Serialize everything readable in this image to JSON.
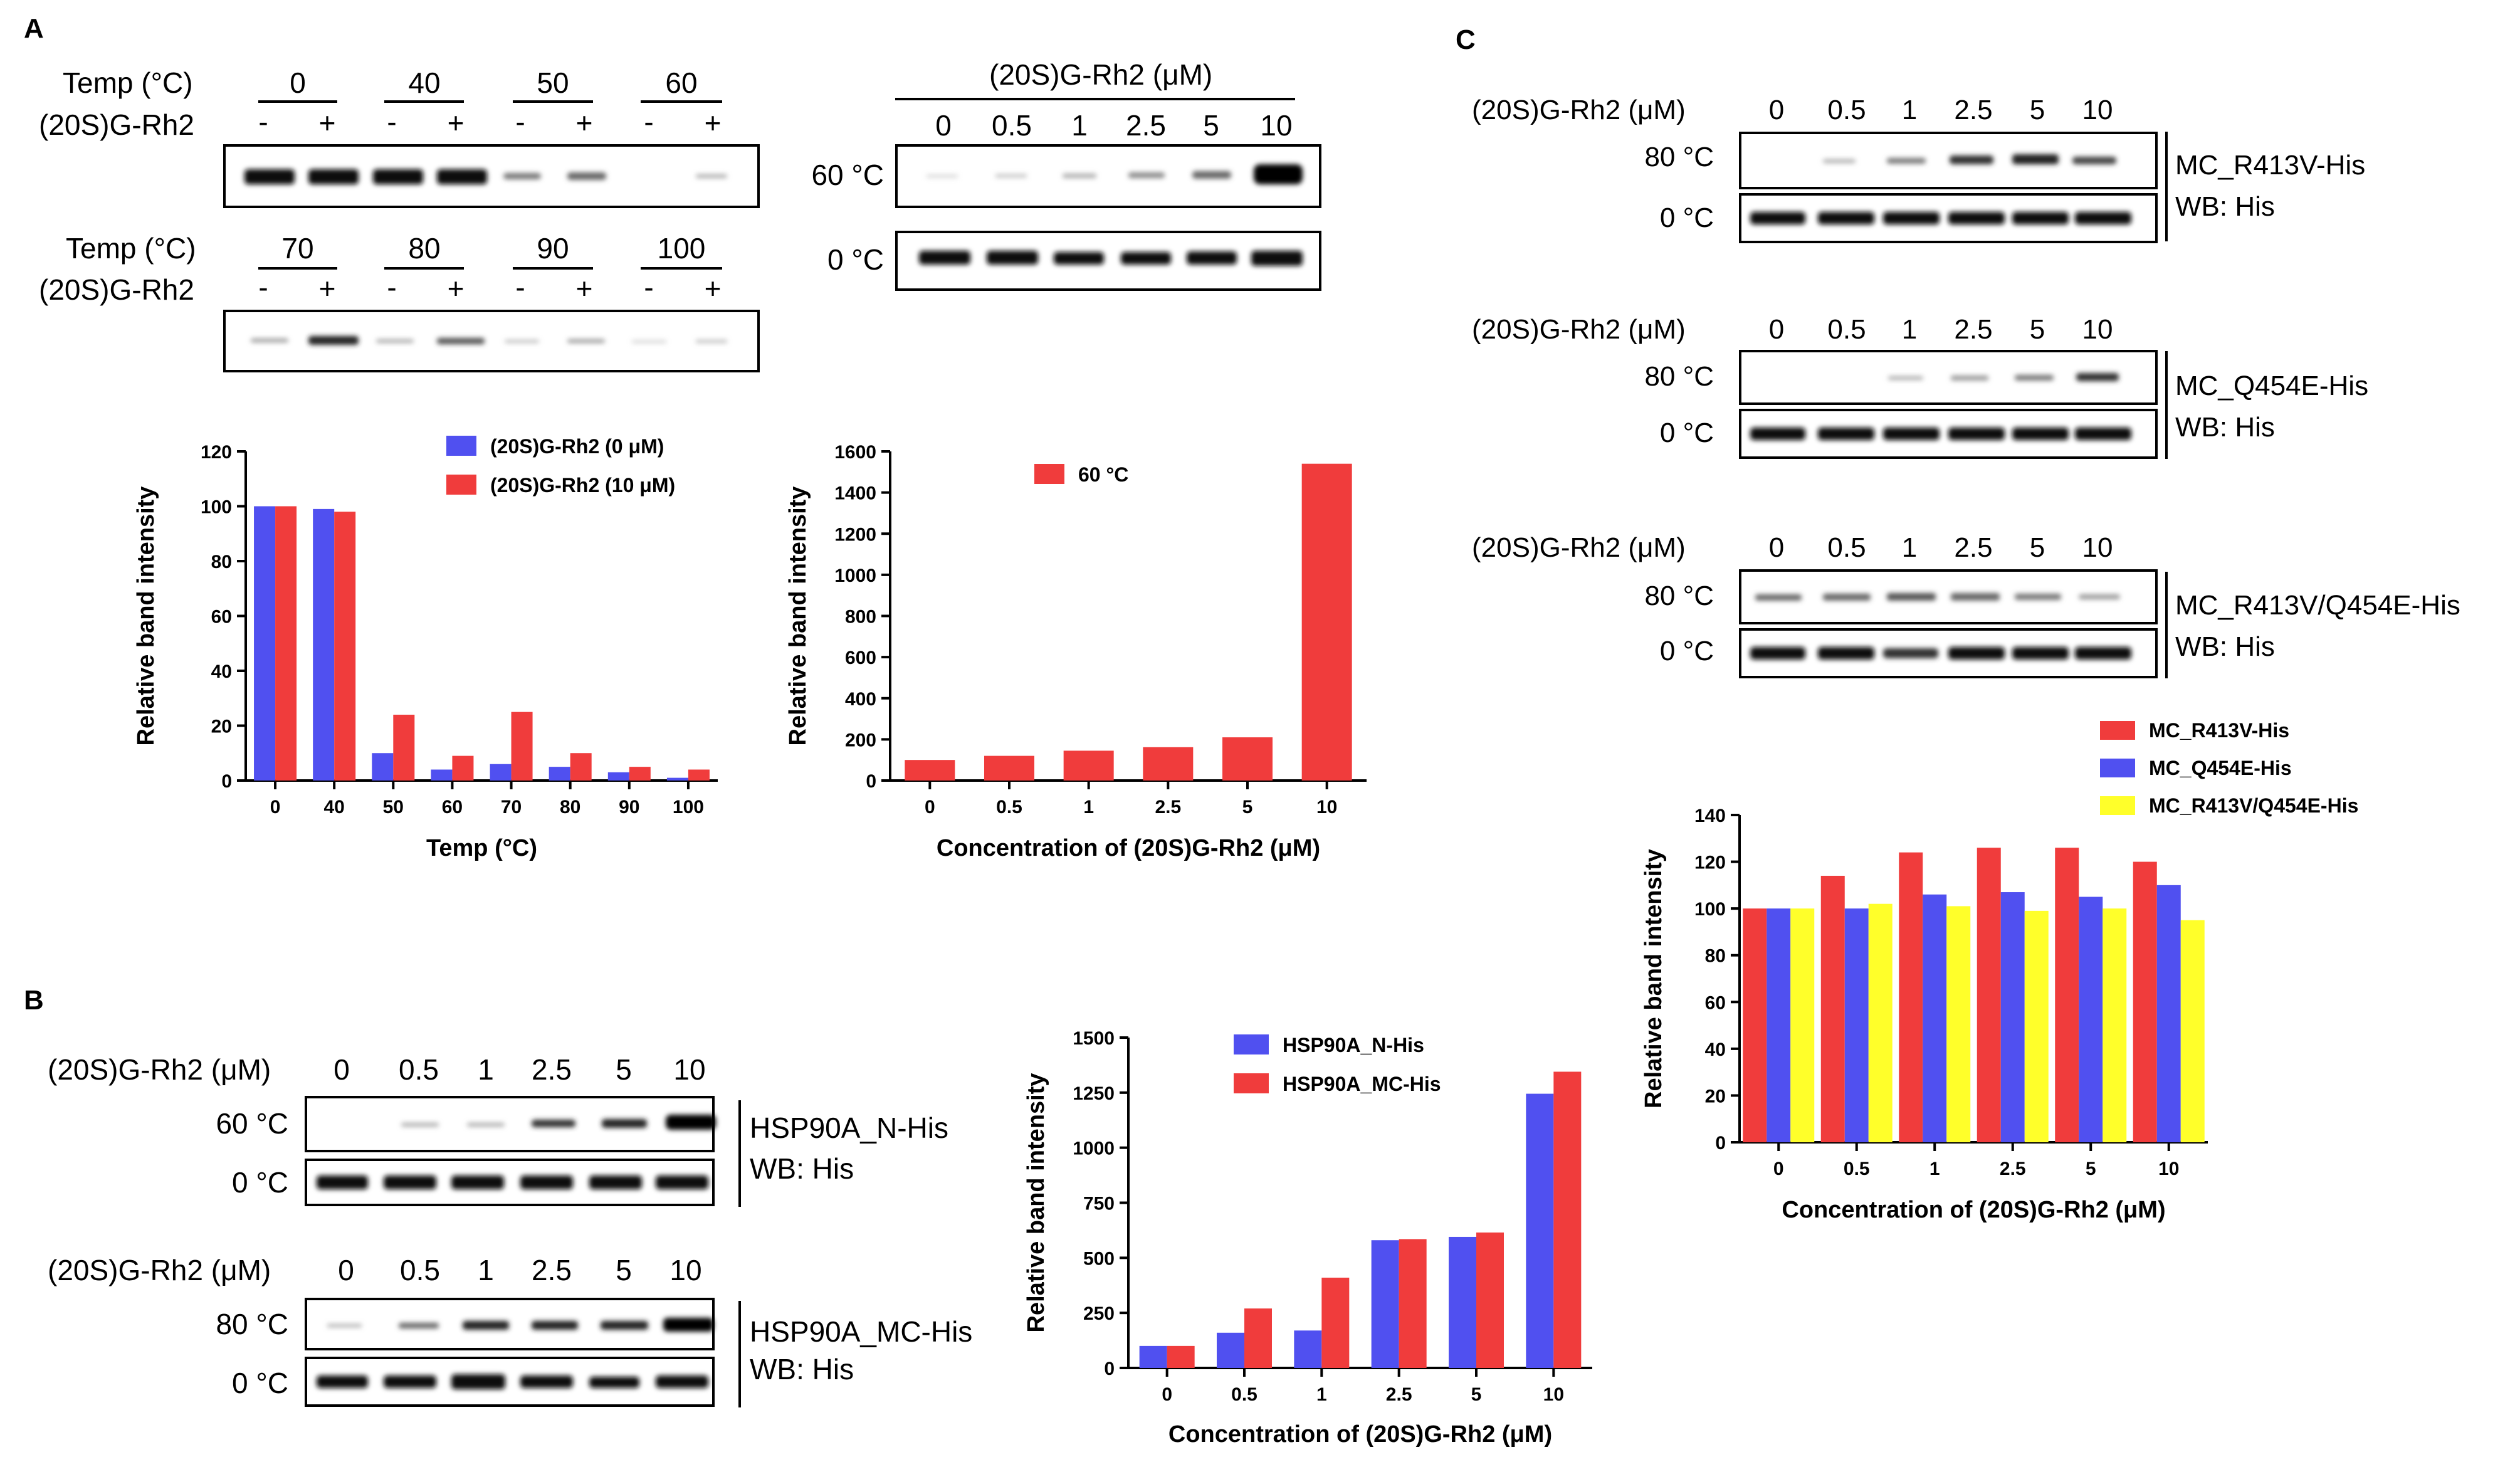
{
  "panel_labels": {
    "a": "A",
    "b": "B",
    "c": "C"
  },
  "blot_labels": {
    "temp": "Temp (°C)",
    "drug": "(20S)G-Rh2",
    "conc": "(20S)G-Rh2 (μM)",
    "c60": "60 °C",
    "c80": "80 °C",
    "c0": "0 °C",
    "minus": "-",
    "plus": "+",
    "wb": "WB: His"
  },
  "temps_row1": [
    "0",
    "40",
    "50",
    "60"
  ],
  "temps_row2": [
    "70",
    "80",
    "90",
    "100"
  ],
  "concs": [
    "0",
    "0.5",
    "1",
    "2.5",
    "5",
    "10"
  ],
  "proteins": {
    "n_his": "HSP90A_N-His",
    "mc_his": "HSP90A_MC-His",
    "r413v": "MC_R413V-His",
    "q454e": "MC_Q454E-His",
    "double": "MC_R413V/Q454E-His"
  },
  "colors": {
    "blue": "#5050f0",
    "red": "#f03c3c",
    "yellow": "#ffff2a",
    "axis": "#000000"
  },
  "chart_data": [
    {
      "id": "A1",
      "type": "bar",
      "categories": [
        "0",
        "40",
        "50",
        "60",
        "70",
        "80",
        "90",
        "100"
      ],
      "series": [
        {
          "name": "(20S)G-Rh2 (0 μM)",
          "color": "#5050f0",
          "values": [
            100,
            99,
            10,
            4,
            6,
            5,
            3,
            1
          ]
        },
        {
          "name": "(20S)G-Rh2 (10 μM)",
          "color": "#f03c3c",
          "values": [
            100,
            98,
            24,
            9,
            25,
            10,
            5,
            4
          ]
        }
      ],
      "title": "",
      "xlabel": "Temp (°C)",
      "ylabel": "Relative band intensity",
      "ylim": [
        0,
        120
      ],
      "yticks": [
        0,
        20,
        40,
        60,
        80,
        100,
        120
      ]
    },
    {
      "id": "A2",
      "type": "bar",
      "categories": [
        "0",
        "0.5",
        "1",
        "2.5",
        "5",
        "10"
      ],
      "series": [
        {
          "name": "60 °C",
          "color": "#f03c3c",
          "values": [
            100,
            120,
            145,
            162,
            210,
            1540
          ]
        }
      ],
      "title": "",
      "xlabel": "Concentration of (20S)G-Rh2 (μM)",
      "ylabel": "Relative band intensity",
      "ylim": [
        0,
        1600
      ],
      "yticks": [
        0,
        200,
        400,
        600,
        800,
        1000,
        1200,
        1400,
        1600
      ]
    },
    {
      "id": "B",
      "type": "bar",
      "categories": [
        "0",
        "0.5",
        "1",
        "2.5",
        "5",
        "10"
      ],
      "series": [
        {
          "name": "HSP90A_N-His",
          "color": "#5050f0",
          "values": [
            100,
            160,
            170,
            580,
            595,
            1245
          ]
        },
        {
          "name": "HSP90A_MC-His",
          "color": "#f03c3c",
          "values": [
            100,
            270,
            410,
            585,
            615,
            1345
          ]
        }
      ],
      "title": "",
      "xlabel": "Concentration of (20S)G-Rh2 (μM)",
      "ylabel": "Relative band intensity",
      "ylim": [
        0,
        1500
      ],
      "yticks": [
        0,
        250,
        500,
        750,
        1000,
        1250,
        1500
      ]
    },
    {
      "id": "C",
      "type": "bar",
      "categories": [
        "0",
        "0.5",
        "1",
        "2.5",
        "5",
        "10"
      ],
      "series": [
        {
          "name": "MC_R413V-His",
          "color": "#f03c3c",
          "values": [
            100,
            114,
            124,
            126,
            126,
            120
          ]
        },
        {
          "name": "MC_Q454E-His",
          "color": "#5050f0",
          "values": [
            100,
            100,
            106,
            107,
            105,
            110
          ]
        },
        {
          "name": "MC_R413V/Q454E-His",
          "color": "#ffff2a",
          "values": [
            100,
            102,
            101,
            99,
            100,
            95
          ]
        }
      ],
      "title": "",
      "xlabel": "Concentration of (20S)G-Rh2 (μM)",
      "ylabel": "Relative band intensity",
      "ylim": [
        0,
        140
      ],
      "yticks": [
        0,
        20,
        40,
        60,
        80,
        100,
        120,
        140
      ]
    }
  ]
}
